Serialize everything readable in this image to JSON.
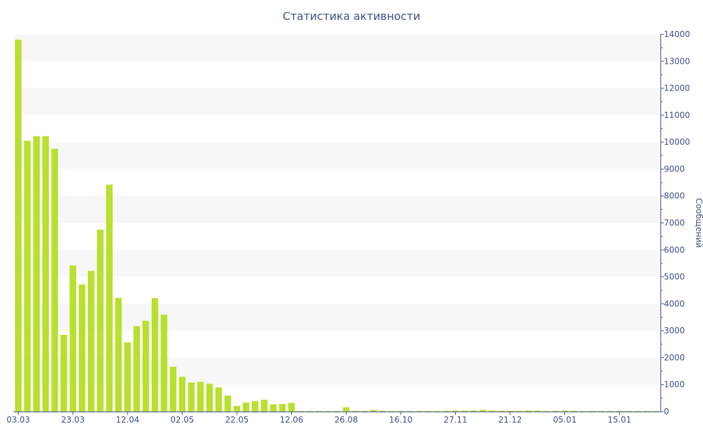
{
  "chart_data": {
    "type": "bar",
    "title": "Статистика активности",
    "ylabel": "Сообщений",
    "xlabel": "",
    "ylim": [
      0,
      14000
    ],
    "y_ticks": [
      0,
      1000,
      2000,
      3000,
      4000,
      5000,
      6000,
      7000,
      8000,
      9000,
      10000,
      11000,
      12000,
      13000,
      14000
    ],
    "y_axis_side": "right",
    "x_tick_labels": [
      {
        "label": "03.03",
        "index": 0
      },
      {
        "label": "23.03",
        "index": 6
      },
      {
        "label": "12.04",
        "index": 12
      },
      {
        "label": "02.05",
        "index": 18
      },
      {
        "label": "22.05",
        "index": 24
      },
      {
        "label": "12.06",
        "index": 30
      },
      {
        "label": "26.08",
        "index": 36
      },
      {
        "label": "16.10",
        "index": 42
      },
      {
        "label": "27.11",
        "index": 48
      },
      {
        "label": "21.12",
        "index": 54
      },
      {
        "label": "05.01",
        "index": 60
      },
      {
        "label": "15.01",
        "index": 66
      }
    ],
    "values": [
      13800,
      10050,
      10220,
      10220,
      9750,
      2850,
      5420,
      4720,
      5220,
      6750,
      8420,
      4220,
      2570,
      3170,
      3370,
      4210,
      3600,
      1660,
      1290,
      1080,
      1100,
      1030,
      900,
      590,
      210,
      330,
      390,
      440,
      270,
      280,
      320,
      8,
      8,
      8,
      8,
      8,
      160,
      25,
      20,
      60,
      25,
      20,
      20,
      15,
      20,
      20,
      20,
      30,
      40,
      35,
      45,
      65,
      40,
      30,
      25,
      30,
      40,
      35,
      20,
      25,
      30,
      25,
      20,
      25,
      20,
      20,
      15,
      20,
      15,
      20,
      15
    ],
    "bar_color": "#b8e02e",
    "band_color": "#f7f7f7",
    "grid": true,
    "legend": "none"
  }
}
